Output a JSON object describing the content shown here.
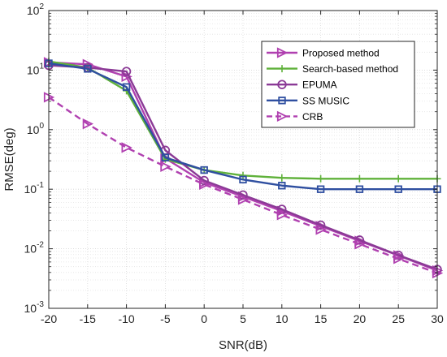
{
  "chart_data": {
    "type": "line",
    "title": "",
    "xlabel": "SNR(dB)",
    "ylabel": "RMSE(deg)",
    "x": [
      -20,
      -15,
      -10,
      -5,
      0,
      5,
      10,
      15,
      20,
      25,
      30
    ],
    "xlim": [
      -20,
      30
    ],
    "ylim": [
      0.001,
      100
    ],
    "yscale": "log",
    "grid": true,
    "legend_position": "top-right",
    "x_ticks": [
      "-20",
      "-15",
      "-10",
      "-5",
      "0",
      "5",
      "10",
      "15",
      "20",
      "25",
      "30"
    ],
    "y_ticks": [
      {
        "base": "10",
        "exp": "-3",
        "value": 0.001
      },
      {
        "base": "10",
        "exp": "-2",
        "value": 0.01
      },
      {
        "base": "10",
        "exp": "-1",
        "value": 0.1
      },
      {
        "base": "10",
        "exp": "0",
        "value": 1
      },
      {
        "base": "10",
        "exp": "1",
        "value": 10
      },
      {
        "base": "10",
        "exp": "2",
        "value": 100
      }
    ],
    "series": [
      {
        "name": "Proposed method",
        "color": "#b040b0",
        "marker": "triangle-right",
        "dash": "solid",
        "values": [
          13.5,
          12.5,
          7.8,
          0.33,
          0.13,
          0.075,
          0.043,
          0.024,
          0.0135,
          0.0077,
          0.0043
        ]
      },
      {
        "name": "Search-based method",
        "color": "#5fb13a",
        "marker": "plus",
        "dash": "solid",
        "values": [
          14.0,
          11.0,
          4.5,
          0.32,
          0.21,
          0.17,
          0.155,
          0.15,
          0.15,
          0.15,
          0.15
        ]
      },
      {
        "name": "EPUMA",
        "color": "#8b3a96",
        "marker": "circle",
        "dash": "solid",
        "values": [
          12.0,
          11.0,
          9.5,
          0.45,
          0.14,
          0.08,
          0.046,
          0.025,
          0.014,
          0.0078,
          0.0045
        ]
      },
      {
        "name": "SS MUSIC",
        "color": "#2f4fa0",
        "marker": "square",
        "dash": "solid",
        "values": [
          13.0,
          10.5,
          5.2,
          0.34,
          0.21,
          0.145,
          0.115,
          0.1,
          0.1,
          0.1,
          0.1
        ]
      },
      {
        "name": "CRB",
        "color": "#b040b0",
        "marker": "triangle-right",
        "dash": "dashed",
        "values": [
          3.5,
          1.25,
          0.5,
          0.24,
          0.12,
          0.067,
          0.037,
          0.021,
          0.012,
          0.0068,
          0.0039
        ]
      }
    ]
  }
}
